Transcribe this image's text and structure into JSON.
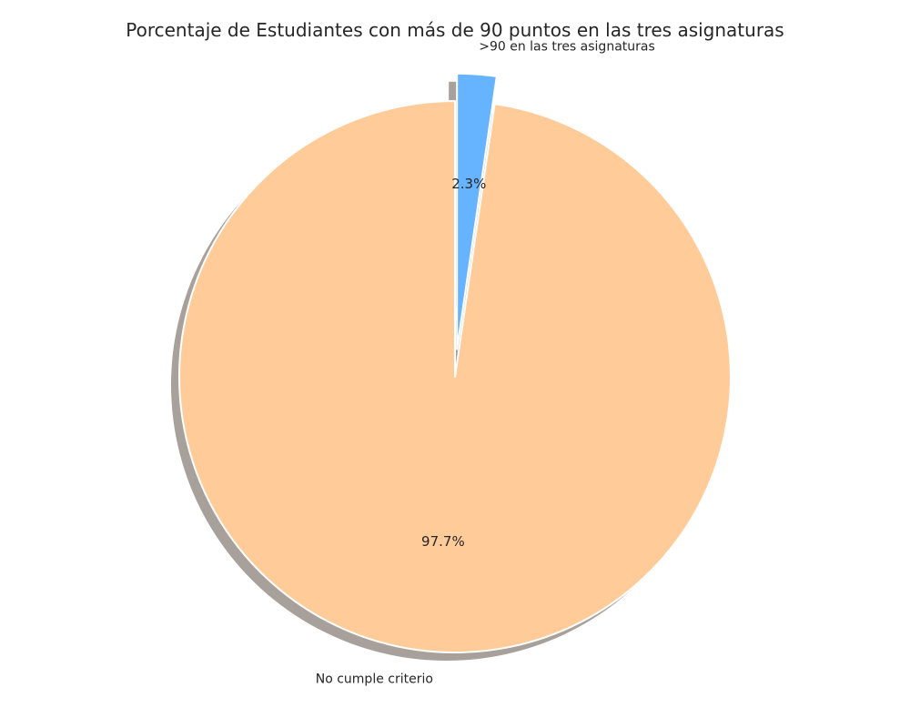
{
  "chart_data": {
    "type": "pie",
    "title": "Porcentaje de Estudiantes con más de 90 puntos en las tres asignaturas",
    "start_angle_deg": 90,
    "direction": "clockwise",
    "shadow": true,
    "slices": [
      {
        "label": ">90 en las tres asignaturas",
        "value": 2.3,
        "pct_label": "2.3%",
        "color": "#66b3ff",
        "explode": 0.1
      },
      {
        "label": "No cumple criterio",
        "value": 97.7,
        "pct_label": "97.7%",
        "color": "#ffcc99",
        "explode": 0
      }
    ]
  }
}
